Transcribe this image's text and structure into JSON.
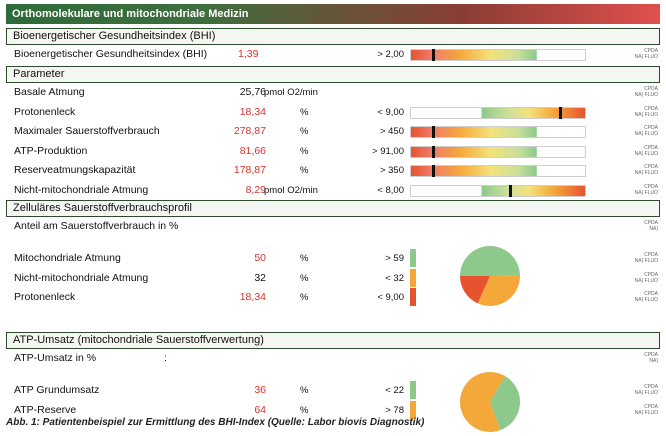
{
  "banner_title": "Orthomolekulare und mitochondriale Medizin",
  "cpda_label": "CPDA",
  "cpda_sub1": "NA) FLUO",
  "cpda_sub2": "NA)",
  "sections": {
    "bhi": "Bioenergetischer Gesundheitsindex (BHI)",
    "parameter": "Parameter",
    "profil": "Zelluläres Sauerstoffverbrauchsprofil",
    "atp": "ATP-Umsatz (mitochondriale Sauerstoffverwertung)"
  },
  "bhi_row": {
    "label": "Bioenergetischer Gesundheitsindex (BHI)",
    "value": "1,39",
    "ref": "> 2,00",
    "marker": 0.12
  },
  "parameters": [
    {
      "label": "Basale Atmung",
      "value": "25,76",
      "value_color": "black",
      "unit": "pmol O2/min",
      "ref": "",
      "marker": null
    },
    {
      "label": "Protonenleck",
      "value": "18,34",
      "value_color": "red",
      "unit": "%",
      "ref": "< 9,00",
      "marker": 0.86
    },
    {
      "label": "Maximaler Sauerstoffverbrauch",
      "value": "278,87",
      "value_color": "red",
      "unit": "%",
      "ref": "> 450",
      "marker": 0.12
    },
    {
      "label": "ATP-Produktion",
      "value": "81,66",
      "value_color": "red",
      "unit": "%",
      "ref": "> 91,00",
      "marker": 0.12
    },
    {
      "label": "Reserveatmungskapazität",
      "value": "178,87",
      "value_color": "red",
      "unit": "%",
      "ref": "> 350",
      "marker": 0.12
    },
    {
      "label": "Nicht-mitochondriale Atmung",
      "value": "8,29",
      "value_color": "red",
      "unit": "pmol O2/min",
      "ref": "< 8,00",
      "marker": 0.57
    }
  ],
  "profil": {
    "intro": "Anteil am Sauerstoffverbrauch in %",
    "rows": [
      {
        "label": "Mitochondriale Atmung",
        "value": "50",
        "value_color": "red",
        "unit": "%",
        "ref": "> 59",
        "bar_color": "#8cc98a"
      },
      {
        "label": "Nicht-mitochondriale Atmung",
        "value": "32",
        "value_color": "black",
        "unit": "%",
        "ref": "< 32",
        "bar_color": "#f4a83a"
      },
      {
        "label": "Protonenleck",
        "value": "18,34",
        "value_color": "red",
        "unit": "%",
        "ref": "< 9,00",
        "bar_color": "#e8532f"
      }
    ],
    "pie": [
      {
        "name": "Mitochondriale Atmung",
        "value": 50,
        "color": "#8cc98a"
      },
      {
        "name": "Nicht-mitochondriale Atmung",
        "value": 32,
        "color": "#f4a83a"
      },
      {
        "name": "Protonenleck",
        "value": 18.34,
        "color": "#e8532f"
      }
    ]
  },
  "atp": {
    "intro": "ATP-Umsatz in %",
    "intro_colon": ":",
    "rows": [
      {
        "label": "ATP Grundumsatz",
        "value": "36",
        "value_color": "red",
        "unit": "%",
        "ref": "< 22",
        "bar_color": "#8cc98a"
      },
      {
        "label": "ATP-Reserve",
        "value": "64",
        "value_color": "red",
        "unit": "%",
        "ref": "> 78",
        "bar_color": "#f4a83a"
      }
    ],
    "pie": [
      {
        "name": "ATP Grundumsatz",
        "value": 36,
        "color": "#8cc98a"
      },
      {
        "name": "ATP-Reserve",
        "value": 64,
        "color": "#f4a83a"
      }
    ]
  },
  "caption": "Abb. 1: Patientenbeispiel zur Ermittlung des BHI-Index (Quelle: Labor biovis Diagnostik)",
  "colors": {
    "good": "#8cc98a",
    "mid": "#f4e27a",
    "warn": "#f4a83a",
    "bad": "#e8532f"
  }
}
